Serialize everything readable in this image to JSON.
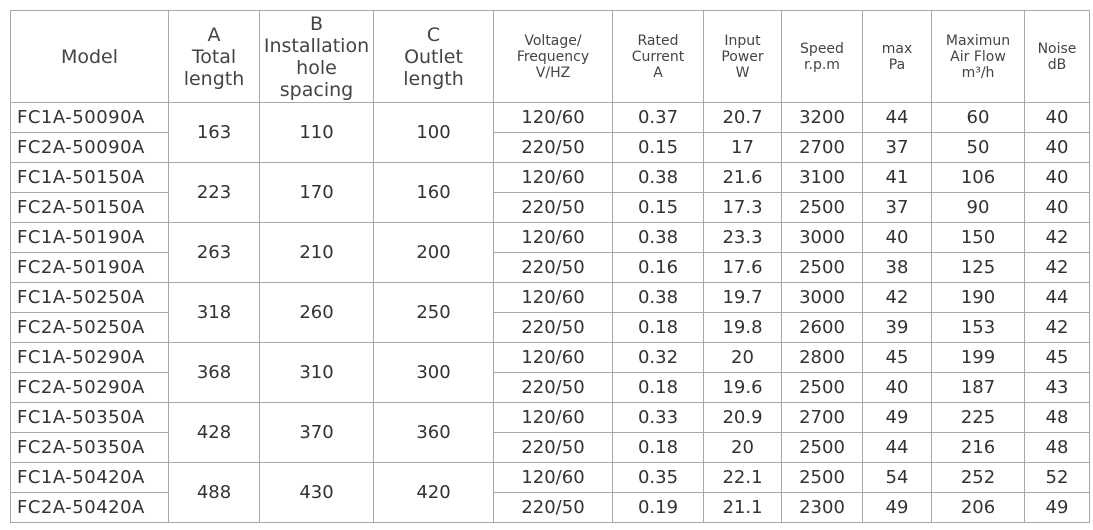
{
  "table": {
    "headers": [
      [
        "Model"
      ],
      [
        "A",
        "Total",
        "length"
      ],
      [
        "B",
        "Installation",
        "hole",
        "spacing"
      ],
      [
        "C",
        "Outlet",
        "length"
      ],
      [
        "Voltage/",
        "Frequency",
        "V/HZ"
      ],
      [
        "Rated",
        "Current",
        "A"
      ],
      [
        "Input",
        "Power",
        "W"
      ],
      [
        "Speed",
        "r.p.m"
      ],
      [
        "max",
        "Pa"
      ],
      [
        "Maximun",
        "Air Flow",
        "m³/h"
      ],
      [
        "Noise",
        "dB"
      ]
    ],
    "groups": [
      {
        "models": [
          "FC1A-50090A",
          "FC2A-50090A"
        ],
        "total_length": 163,
        "hole_spacing": 110,
        "outlet_length": 100,
        "rows": [
          [
            "120/60",
            0.37,
            20.7,
            3200,
            44,
            60,
            40
          ],
          [
            "220/50",
            0.15,
            17,
            2700,
            37,
            50,
            40
          ]
        ]
      },
      {
        "models": [
          "FC1A-50150A",
          "FC2A-50150A"
        ],
        "total_length": 223,
        "hole_spacing": 170,
        "outlet_length": 160,
        "rows": [
          [
            "120/60",
            0.38,
            21.6,
            3100,
            41,
            106,
            40
          ],
          [
            "220/50",
            0.15,
            17.3,
            2500,
            37,
            90,
            40
          ]
        ]
      },
      {
        "models": [
          "FC1A-50190A",
          "FC2A-50190A"
        ],
        "total_length": 263,
        "hole_spacing": 210,
        "outlet_length": 200,
        "rows": [
          [
            "120/60",
            0.38,
            23.3,
            3000,
            40,
            150,
            42
          ],
          [
            "220/50",
            0.16,
            17.6,
            2500,
            38,
            125,
            42
          ]
        ]
      },
      {
        "models": [
          "FC1A-50250A",
          "FC2A-50250A"
        ],
        "total_length": 318,
        "hole_spacing": 260,
        "outlet_length": 250,
        "rows": [
          [
            "120/60",
            0.38,
            19.7,
            3000,
            42,
            190,
            44
          ],
          [
            "220/50",
            0.18,
            19.8,
            2600,
            39,
            153,
            42
          ]
        ]
      },
      {
        "models": [
          "FC1A-50290A",
          "FC2A-50290A"
        ],
        "total_length": 368,
        "hole_spacing": 310,
        "outlet_length": 300,
        "rows": [
          [
            "120/60",
            0.32,
            20,
            2800,
            45,
            199,
            45
          ],
          [
            "220/50",
            0.18,
            19.6,
            2500,
            40,
            187,
            43
          ]
        ]
      },
      {
        "models": [
          "FC1A-50350A",
          "FC2A-50350A"
        ],
        "total_length": 428,
        "hole_spacing": 370,
        "outlet_length": 360,
        "rows": [
          [
            "120/60",
            0.33,
            20.9,
            2700,
            49,
            225,
            48
          ],
          [
            "220/50",
            0.18,
            20,
            2500,
            44,
            216,
            48
          ]
        ]
      },
      {
        "models": [
          "FC1A-50420A",
          "FC2A-50420A"
        ],
        "total_length": 488,
        "hole_spacing": 430,
        "outlet_length": 420,
        "rows": [
          [
            "120/60",
            0.35,
            22.1,
            2500,
            54,
            252,
            52
          ],
          [
            "220/50",
            0.19,
            21.1,
            2300,
            49,
            206,
            49
          ]
        ]
      }
    ]
  }
}
